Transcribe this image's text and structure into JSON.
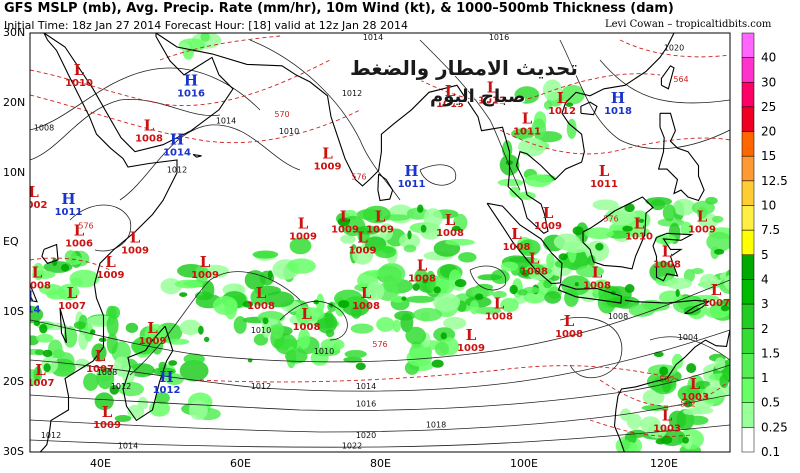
{
  "title": {
    "line1": "GFS MSLP (mb), Avg. Precip. Rate (mm/hr), 10m Wind (kt), & 1000–500mb Thickness (dam)",
    "line2": "Initial Time: 18z Jan 27 2014   Forecast Hour: [18]   valid at 12z Jan 28 2014",
    "credit": "Levi Cowan – tropicaltidbits.com"
  },
  "overlay_text": {
    "line1": "تحديث الامطار والضغط",
    "line2": "صباح اليوم"
  },
  "axes": {
    "lat_labels": [
      "30N",
      "20N",
      "10N",
      "EQ",
      "10S",
      "20S",
      "30S"
    ],
    "lon_labels": [
      "40E",
      "60E",
      "80E",
      "100E",
      "120E"
    ]
  },
  "colorbar": {
    "labels": [
      "40",
      "30",
      "25",
      "20",
      "15",
      "12.5",
      "10",
      "7.5",
      "5",
      "4",
      "3",
      "2",
      "1.5",
      "1",
      "0.5",
      "0.25",
      "0.1"
    ],
    "colors": [
      "#ff66ff",
      "#ff33cc",
      "#ff0066",
      "#ee0022",
      "#ff6600",
      "#ff9933",
      "#ffcc33",
      "#ffee44",
      "#ffff00",
      "#00aa00",
      "#00bb00",
      "#22cc22",
      "#33dd33",
      "#55ee55",
      "#66ff66",
      "#99ff99",
      "#ffffff"
    ]
  },
  "pressure_centers": [
    {
      "type": "L",
      "value": "1010",
      "lon": 37,
      "lat": 24
    },
    {
      "type": "H",
      "value": "1016",
      "lon": 53,
      "lat": 22.5
    },
    {
      "type": "L",
      "value": "1008",
      "lon": 47,
      "lat": 16
    },
    {
      "type": "H",
      "value": "1014",
      "lon": 51,
      "lat": 14
    },
    {
      "type": "L",
      "value": "1002",
      "lon": 30.5,
      "lat": 6.5
    },
    {
      "type": "H",
      "value": "1011",
      "lon": 35.5,
      "lat": 5.5
    },
    {
      "type": "L",
      "value": "1006",
      "lon": 37,
      "lat": 1
    },
    {
      "type": "L",
      "value": "1009",
      "lon": 72.5,
      "lat": 12
    },
    {
      "type": "H",
      "value": "1011",
      "lon": 84.5,
      "lat": 9.5
    },
    {
      "type": "L",
      "value": "1013",
      "lon": 90,
      "lat": 21
    },
    {
      "type": "L",
      "value": "1012",
      "lon": 96,
      "lat": 21.5
    },
    {
      "type": "L",
      "value": "1011",
      "lon": 101,
      "lat": 17
    },
    {
      "type": "L",
      "value": "1012",
      "lon": 106,
      "lat": 20
    },
    {
      "type": "H",
      "value": "1018",
      "lon": 114,
      "lat": 20
    },
    {
      "type": "L",
      "value": "1011",
      "lon": 112,
      "lat": 9.5
    },
    {
      "type": "L",
      "value": "1009",
      "lon": 69,
      "lat": 2
    },
    {
      "type": "L",
      "value": "1009",
      "lon": 75,
      "lat": 3
    },
    {
      "type": "L",
      "value": "1009",
      "lon": 80,
      "lat": 3
    },
    {
      "type": "L",
      "value": "1008",
      "lon": 90,
      "lat": 2.5
    },
    {
      "type": "L",
      "value": "1009",
      "lon": 104,
      "lat": 3.5
    },
    {
      "type": "L",
      "value": "1010",
      "lon": 117,
      "lat": 2
    },
    {
      "type": "L",
      "value": "1009",
      "lon": 126,
      "lat": 3
    },
    {
      "type": "L",
      "value": "1009",
      "lon": 45,
      "lat": 0
    },
    {
      "type": "L",
      "value": "1009",
      "lon": 77.5,
      "lat": 0
    },
    {
      "type": "L",
      "value": "1008",
      "lon": 99.5,
      "lat": 0.5
    },
    {
      "type": "L",
      "value": "1009",
      "lon": 41.5,
      "lat": -3.5
    },
    {
      "type": "L",
      "value": "1009",
      "lon": 55,
      "lat": -3.5
    },
    {
      "type": "L",
      "value": "1008",
      "lon": 102,
      "lat": -3
    },
    {
      "type": "L",
      "value": "1008",
      "lon": 121,
      "lat": -2
    },
    {
      "type": "L",
      "value": "1008",
      "lon": 31,
      "lat": -5
    },
    {
      "type": "L",
      "value": "1008",
      "lon": 86,
      "lat": -4
    },
    {
      "type": "L",
      "value": "1008",
      "lon": 111,
      "lat": -5
    },
    {
      "type": "L",
      "value": "1007",
      "lon": 36,
      "lat": -8
    },
    {
      "type": "L",
      "value": "1008",
      "lon": 63,
      "lat": -8
    },
    {
      "type": "L",
      "value": "1008",
      "lon": 78,
      "lat": -8
    },
    {
      "type": "L",
      "value": "1008",
      "lon": 97,
      "lat": -9.5
    },
    {
      "type": "L",
      "value": "1007",
      "lon": 128,
      "lat": -7.5
    },
    {
      "type": "L",
      "value": "1008",
      "lon": 69.5,
      "lat": -11
    },
    {
      "type": "L",
      "value": "1008",
      "lon": 107,
      "lat": -12
    },
    {
      "type": "L",
      "value": "1009",
      "lon": 93,
      "lat": -14
    },
    {
      "type": "H",
      "value": "1014",
      "lon": 29.5,
      "lat": -8.5
    },
    {
      "type": "L",
      "value": "1009",
      "lon": 47.5,
      "lat": -13
    },
    {
      "type": "L",
      "value": "1007",
      "lon": 40,
      "lat": -17
    },
    {
      "type": "L",
      "value": "1007",
      "lon": 31.5,
      "lat": -19
    },
    {
      "type": "H",
      "value": "1012",
      "lon": 49.5,
      "lat": -20
    },
    {
      "type": "L",
      "value": "1009",
      "lon": 41,
      "lat": -25
    },
    {
      "type": "L",
      "value": "1003",
      "lon": 125,
      "lat": -21
    },
    {
      "type": "L",
      "value": "1003",
      "lon": 121,
      "lat": -25.5
    }
  ],
  "isobar_labels": [
    {
      "text": "1014",
      "lon": 79,
      "lat": 29
    },
    {
      "text": "1016",
      "lon": 97,
      "lat": 29
    },
    {
      "text": "1020",
      "lon": 122,
      "lat": 27.5
    },
    {
      "text": "1014",
      "lon": 58,
      "lat": 17
    },
    {
      "text": "1012",
      "lon": 51,
      "lat": 10
    },
    {
      "text": "1010",
      "lon": 67,
      "lat": 15.5
    },
    {
      "text": "1012",
      "lon": 76,
      "lat": 21
    },
    {
      "text": "1008",
      "lon": 32,
      "lat": 16
    },
    {
      "text": "1010",
      "lon": 63,
      "lat": -13
    },
    {
      "text": "1010",
      "lon": 72,
      "lat": -16
    },
    {
      "text": "1012",
      "lon": 43,
      "lat": -21
    },
    {
      "text": "1012",
      "lon": 63,
      "lat": -21
    },
    {
      "text": "1014",
      "lon": 78,
      "lat": -21
    },
    {
      "text": "1016",
      "lon": 78,
      "lat": -23.5
    },
    {
      "text": "1018",
      "lon": 88,
      "lat": -26.5
    },
    {
      "text": "1020",
      "lon": 78,
      "lat": -28
    },
    {
      "text": "1022",
      "lon": 76,
      "lat": -29.5
    },
    {
      "text": "1012",
      "lon": 33,
      "lat": -28
    },
    {
      "text": "1014",
      "lon": 44,
      "lat": -29.5
    },
    {
      "text": "1008",
      "lon": 114,
      "lat": -11
    },
    {
      "text": "1004",
      "lon": 124,
      "lat": -14
    },
    {
      "text": "1008",
      "lon": 41,
      "lat": -19
    }
  ],
  "thickness_labels": [
    {
      "text": "570",
      "lon": 66,
      "lat": 18
    },
    {
      "text": "576",
      "lon": 80,
      "lat": -15
    },
    {
      "text": "576",
      "lon": 113,
      "lat": 3
    },
    {
      "text": "576",
      "lon": 38,
      "lat": 2
    },
    {
      "text": "582",
      "lon": 121,
      "lat": -20
    },
    {
      "text": "582",
      "lon": 124,
      "lat": -23.5
    },
    {
      "text": "564",
      "lon": 123,
      "lat": 23
    },
    {
      "text": "576",
      "lon": 77,
      "lat": 9
    }
  ]
}
